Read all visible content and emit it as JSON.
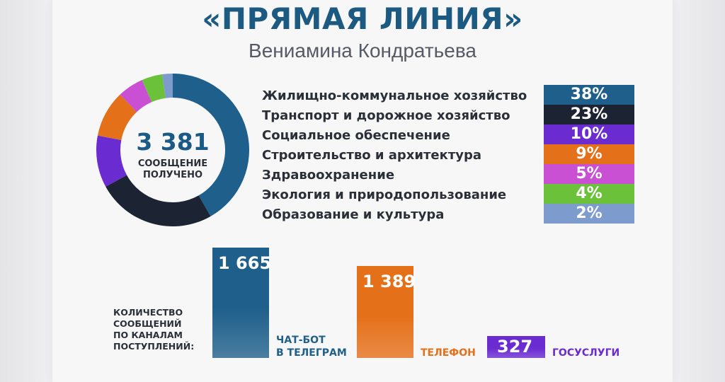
{
  "header": {
    "title": "«ПРЯМАЯ ЛИНИЯ»",
    "subtitle": "Вениамина Кондратьева"
  },
  "chart_data": [
    {
      "type": "pie",
      "total": "3 381",
      "total_caption": "СООБЩЕНИЕ\nПОЛУЧЕНО",
      "categories": [
        "Жилищно-коммунальное хозяйство",
        "Транспорт и дорожное хозяйство",
        "Социальное обеспечение",
        "Строительство и архитектура",
        "Здравоохранение",
        "Экология и природопользование",
        "Образование и культура"
      ],
      "values": [
        38,
        23,
        10,
        9,
        5,
        4,
        2
      ],
      "labels": [
        "38%",
        "23%",
        "10%",
        "9%",
        "5%",
        "4%",
        "2%"
      ],
      "colors": [
        "#1f5f8b",
        "#1c2333",
        "#6a2bd1",
        "#e5701a",
        "#c94fd3",
        "#6cc13a",
        "#7d9bcc"
      ]
    },
    {
      "type": "bar",
      "title": "КОЛИЧЕСТВО\nСООБЩЕНИЙ\nПО КАНАЛАМ\nПОСТУПЛЕНИЙ:",
      "categories": [
        "ЧАТ-БОТ\nВ ТЕЛЕГРАМ",
        "ТЕЛЕФОН",
        "ГОСУСЛУГИ"
      ],
      "values": [
        1665,
        1389,
        327
      ],
      "labels": [
        "1 665",
        "1 389",
        "327"
      ],
      "colors": [
        "#1f5f8b",
        "#e5701a",
        "#6a2bd1"
      ]
    }
  ]
}
